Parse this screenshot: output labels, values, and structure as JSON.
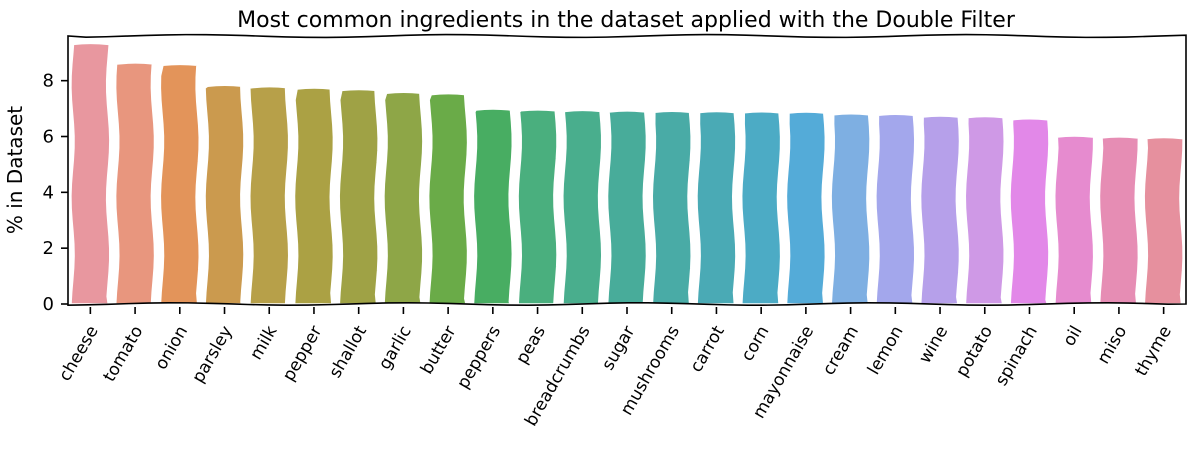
{
  "chart_data": {
    "type": "bar",
    "title": "Most common ingredients in the dataset applied with the Double Filter",
    "xlabel": "",
    "ylabel": "% in Dataset",
    "ylim": [
      0,
      9.6
    ],
    "yticks": [
      0,
      2,
      4,
      6,
      8
    ],
    "grid": false,
    "categories": [
      "cheese",
      "tomato",
      "onion",
      "parsley",
      "milk",
      "pepper",
      "shallot",
      "garlic",
      "butter",
      "peppers",
      "peas",
      "breadcrumbs",
      "sugar",
      "mushrooms",
      "carrot",
      "corn",
      "mayonnaise",
      "cream",
      "lemon",
      "wine",
      "potato",
      "spinach",
      "oil",
      "miso",
      "thyme"
    ],
    "values": [
      9.3,
      8.6,
      8.55,
      7.8,
      7.75,
      7.7,
      7.65,
      7.55,
      7.5,
      6.95,
      6.92,
      6.9,
      6.88,
      6.87,
      6.86,
      6.85,
      6.84,
      6.78,
      6.76,
      6.7,
      6.68,
      6.6,
      5.98,
      5.95,
      5.93
    ],
    "colors": [
      "#e8979f",
      "#e8967e",
      "#e3945a",
      "#cb9a4e",
      "#b7a049",
      "#aba144",
      "#9fa245",
      "#8ea647",
      "#6aab48",
      "#48ad62",
      "#4aaf7e",
      "#49ae8d",
      "#48ac9a",
      "#49aba6",
      "#4aaab5",
      "#4cabc5",
      "#54abd8",
      "#7eafe2",
      "#a3a7ec",
      "#b6a0ea",
      "#cf99e6",
      "#e288e8",
      "#e68bcf",
      "#e68db4",
      "#e6909e"
    ]
  }
}
